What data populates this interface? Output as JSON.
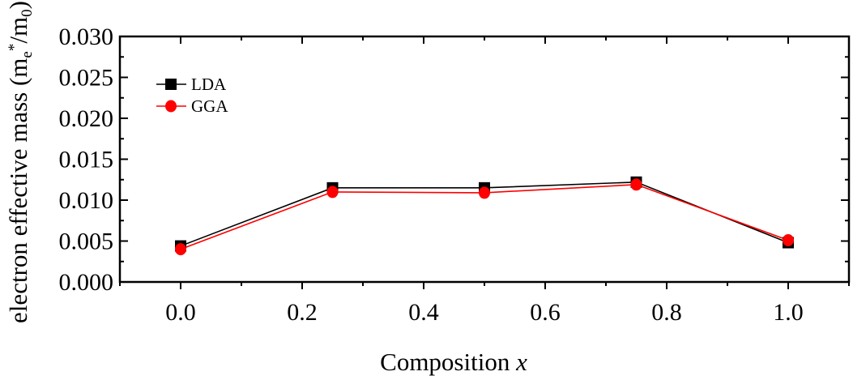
{
  "chart_data": {
    "type": "line",
    "title": "",
    "xlabel": "Composition ",
    "xlabel_var": "x",
    "ylabel": {
      "prefix": "electron effective mass (m",
      "sub1": "e",
      "sup": "*",
      "mid": "/m",
      "sub2": "0",
      "suffix": ")"
    },
    "xlim": [
      -0.1,
      1.1
    ],
    "ylim": [
      0.0,
      0.03
    ],
    "xticks": [
      "0.0",
      "0.2",
      "0.4",
      "0.6",
      "0.8",
      "1.0"
    ],
    "yticks": [
      "0.000",
      "0.005",
      "0.010",
      "0.015",
      "0.020",
      "0.025",
      "0.030"
    ],
    "grid": false,
    "legend_position": "top-left",
    "x": [
      0.0,
      0.25,
      0.5,
      0.75,
      1.0
    ],
    "series": [
      {
        "name": "LDA",
        "values": [
          0.0044,
          0.0115,
          0.0115,
          0.0122,
          0.0048
        ],
        "color": "#000000",
        "marker": "square"
      },
      {
        "name": "GGA",
        "values": [
          0.004,
          0.011,
          0.0109,
          0.0119,
          0.0051
        ],
        "color": "#ff0000",
        "marker": "circle"
      }
    ]
  }
}
